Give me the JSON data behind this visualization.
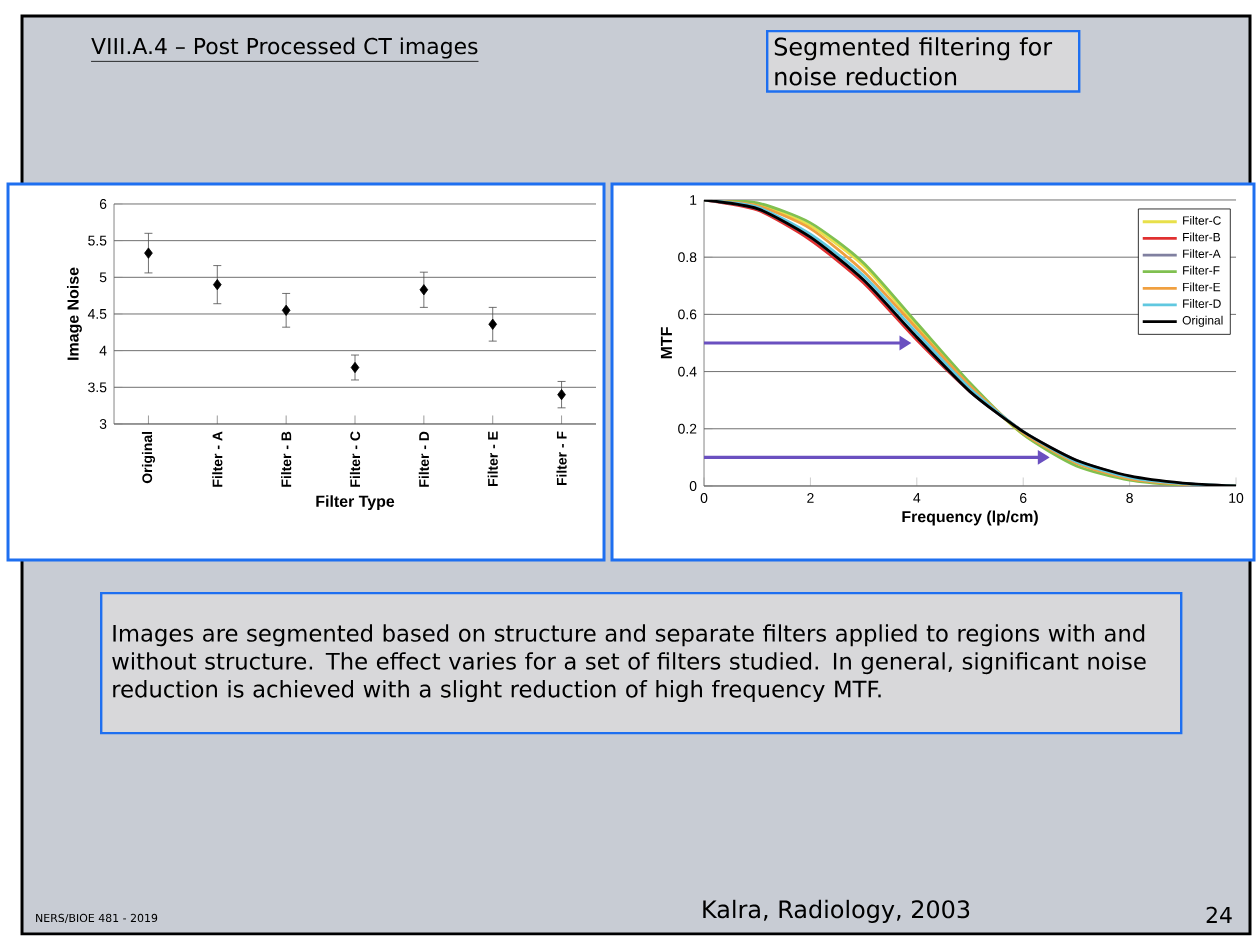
{
  "chart_data": [
    {
      "type": "scatter",
      "title": "VIII.A.4 – Post Processed CT images",
      "xlabel": "Filter Type",
      "ylabel": "Image Noise",
      "categories": [
        "Original",
        "Filter - A",
        "Filter - B",
        "Filter - C",
        "Filter - D",
        "Filter - E",
        "Filter - F"
      ],
      "values": [
        5.33,
        4.9,
        4.55,
        3.77,
        4.83,
        4.36,
        3.4
      ],
      "errors": [
        0.27,
        0.26,
        0.23,
        0.17,
        0.24,
        0.23,
        0.18
      ],
      "color": "#000000",
      "marker": "diamond",
      "ylim": [
        3,
        6
      ],
      "yticks": [
        3,
        3.5,
        4,
        4.5,
        5,
        5.5,
        6
      ],
      "grid": "y",
      "annotations": [
        "Segmented filtering for noise reduction",
        "Images are segmented based on structure and separate filters applied to regions with and without structure. The effect varies for a set of filters studied. In general, significant noise reduction is achieved with a slight reduction of high frequency MTF.",
        "NERS/BIOE 481 - 2019",
        "Kalra, Radiology, 2003",
        "24"
      ]
    },
    {
      "type": "line",
      "xlabel": "Frequency (lp/cm)",
      "ylabel": "MTF",
      "xlim": [
        0,
        10
      ],
      "ylim": [
        0,
        1
      ],
      "xticks": [
        0,
        2,
        4,
        6,
        8,
        10
      ],
      "yticks": [
        0,
        0.2,
        0.4,
        0.6,
        0.8,
        1
      ],
      "grid": "y",
      "legend": "top right",
      "x": [
        0,
        1,
        2,
        3,
        4,
        5,
        6,
        7,
        8,
        9,
        10
      ],
      "series": [
        {
          "name": "Filter-C",
          "color": "#e8e04a",
          "values": [
            1,
            0.985,
            0.91,
            0.77,
            0.56,
            0.35,
            0.18,
            0.075,
            null,
            null,
            null
          ]
        },
        {
          "name": "Filter-B",
          "color": "#e03030",
          "values": [
            1,
            0.965,
            0.86,
            0.71,
            0.51,
            0.33,
            0.19,
            null,
            null,
            null,
            null
          ]
        },
        {
          "name": "Filter-A",
          "color": "#8080a0",
          "values": [
            1,
            0.97,
            0.87,
            0.72,
            0.52,
            0.33,
            0.19,
            0.09,
            0.033,
            0.009,
            0
          ]
        },
        {
          "name": "Filter-F",
          "color": "#80c050",
          "values": [
            1,
            0.99,
            0.92,
            0.78,
            0.57,
            0.36,
            0.18,
            0.07,
            0.02,
            0.003,
            0
          ]
        },
        {
          "name": "Filter-E",
          "color": "#f0a040",
          "values": [
            1,
            0.98,
            0.9,
            0.75,
            0.55,
            0.35,
            0.185,
            0.08,
            0.025,
            0.006,
            0
          ]
        },
        {
          "name": "Filter-D",
          "color": "#60c8e0",
          "values": [
            1,
            0.975,
            0.88,
            0.735,
            0.535,
            0.34,
            0.19,
            0.085,
            0.03,
            0.008,
            0
          ]
        },
        {
          "name": "Original",
          "color": "#000000",
          "values": [
            1,
            0.97,
            0.87,
            0.72,
            0.52,
            0.33,
            0.19,
            0.09,
            0.035,
            0.01,
            0
          ]
        }
      ]
    }
  ]
}
